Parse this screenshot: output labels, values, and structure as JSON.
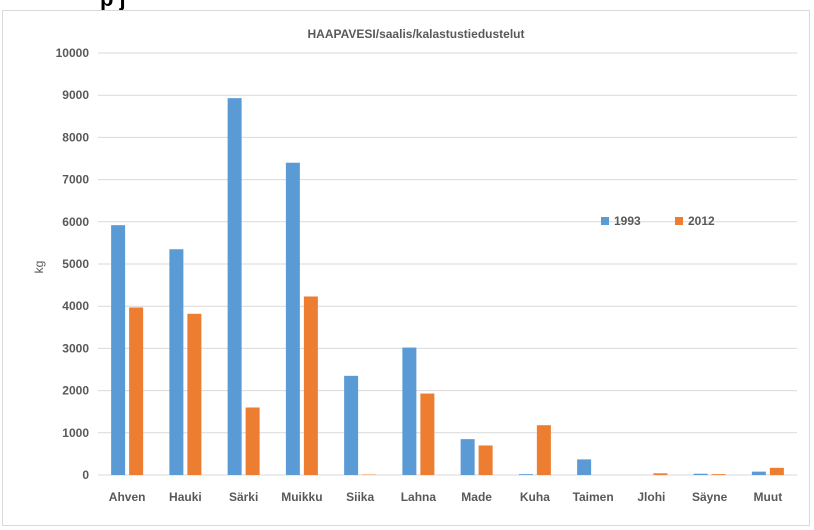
{
  "header_fragment": "p                  j",
  "chart_data": {
    "type": "bar",
    "title": "HAAPAVESI/saalis/kalastustiedustelut",
    "xlabel": "",
    "ylabel": "kg",
    "ylim": [
      0,
      10000
    ],
    "yticks": [
      0,
      1000,
      2000,
      3000,
      4000,
      5000,
      6000,
      7000,
      8000,
      9000,
      10000
    ],
    "grid": true,
    "legend_position": "right-middle",
    "categories": [
      "Ahven",
      "Hauki",
      "Särki",
      "Muikku",
      "Siika",
      "Lahna",
      "Made",
      "Kuha",
      "Taimen",
      "Jlohi",
      "Säyne",
      "Muut"
    ],
    "series": [
      {
        "name": "1993",
        "color": "#5b9bd5",
        "values": [
          5920,
          5350,
          8930,
          7400,
          2350,
          3020,
          850,
          20,
          370,
          0,
          30,
          80
        ]
      },
      {
        "name": "2012",
        "color": "#ed7d31",
        "values": [
          3970,
          3820,
          1600,
          4230,
          10,
          1930,
          700,
          1180,
          0,
          40,
          20,
          170
        ]
      }
    ]
  }
}
